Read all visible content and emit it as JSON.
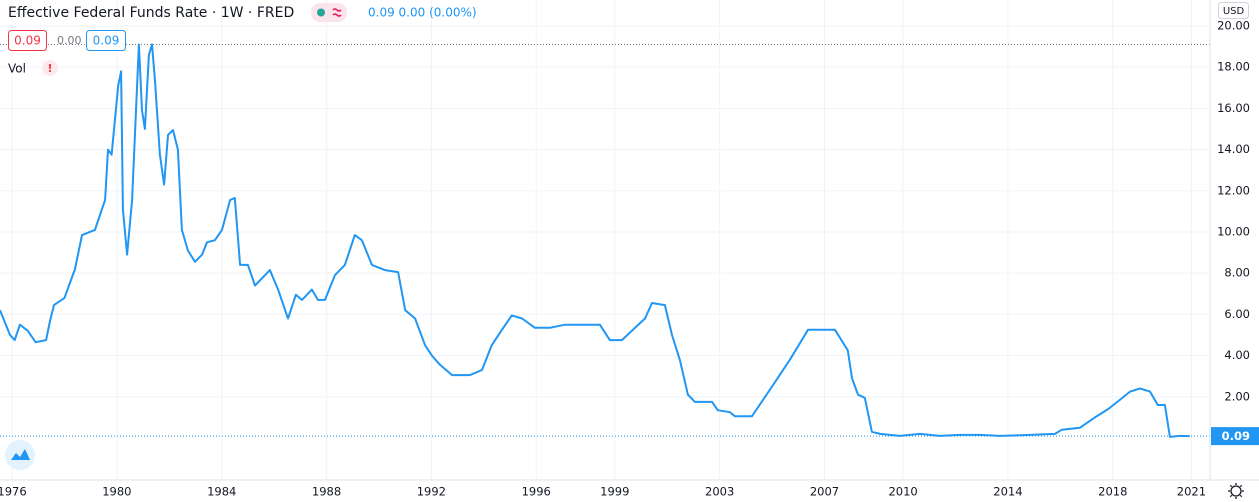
{
  "chart_data": {
    "type": "line",
    "title": "Effective Federal Funds Rate · 1W · FRED",
    "legend_values": "0.09 0.00 (0.00%)",
    "change": "0.00",
    "last_price": 0.09,
    "volume_label": "Vol",
    "volume_warning": "!",
    "currency": "USD",
    "color": "#2196f3",
    "grid": true,
    "xlim": [
      1975.54,
      2021.71
    ],
    "xticks": [
      1976,
      1980,
      1984,
      1988,
      1992,
      1996,
      1999,
      2003,
      2007,
      2010,
      2014,
      2018,
      2021
    ],
    "ylim": [
      -2.04,
      21.26
    ],
    "yticks": [
      {
        "value": 2,
        "label": "2.00"
      },
      {
        "value": 4,
        "label": "4.00"
      },
      {
        "value": 6,
        "label": "6.00"
      },
      {
        "value": 8,
        "label": "8.00"
      },
      {
        "value": 10,
        "label": "10.00"
      },
      {
        "value": 12,
        "label": "12.00"
      },
      {
        "value": 14,
        "label": "14.00"
      },
      {
        "value": 16,
        "label": "16.00"
      },
      {
        "value": 18,
        "label": "18.00"
      },
      {
        "value": 20,
        "label": "20.00"
      }
    ],
    "x": [
      1975.54,
      1975.92,
      1976.1,
      1976.3,
      1976.6,
      1976.9,
      1977.3,
      1977.45,
      1977.6,
      1978.0,
      1978.4,
      1978.67,
      1979.16,
      1979.55,
      1979.66,
      1979.8,
      1980.05,
      1980.16,
      1980.23,
      1980.39,
      1980.58,
      1980.73,
      1980.84,
      1980.96,
      1981.07,
      1981.22,
      1981.34,
      1981.45,
      1981.64,
      1981.8,
      1981.95,
      1982.14,
      1982.33,
      1982.48,
      1982.71,
      1982.98,
      1983.25,
      1983.44,
      1983.74,
      1984.01,
      1984.32,
      1984.5,
      1984.7,
      1985.0,
      1985.27,
      1985.65,
      1985.84,
      1986.15,
      1986.53,
      1986.83,
      1987.06,
      1987.44,
      1987.67,
      1987.94,
      1988.32,
      1988.7,
      1989.08,
      1989.35,
      1989.73,
      1990.23,
      1990.73,
      1991.0,
      1991.38,
      1991.76,
      1992.02,
      1992.33,
      1992.79,
      1993.47,
      1993.93,
      1994.3,
      1994.69,
      1995.07,
      1995.46,
      1995.95,
      1996.52,
      1997.1,
      1997.67,
      1998.43,
      1998.81,
      1999.27,
      1999.77,
      2000.15,
      2000.42,
      2000.91,
      2001.18,
      2001.48,
      2001.79,
      2002.06,
      2002.71,
      2002.93,
      2003.39,
      2003.58,
      2004.23,
      2004.92,
      2005.68,
      2006.37,
      2007.4,
      2007.89,
      2008.05,
      2008.28,
      2008.54,
      2008.81,
      2009.12,
      2009.88,
      2010.64,
      2011.4,
      2012.17,
      2012.93,
      2013.7,
      2014.84,
      2015.79,
      2016.06,
      2016.75,
      2017.32,
      2017.82,
      2018.27,
      2018.66,
      2019.04,
      2019.42,
      2019.72,
      2019.99,
      2020.18,
      2020.56,
      2020.94
    ],
    "series": [
      {
        "name": "Effective Federal Funds Rate",
        "color": "#2196f3",
        "values": [
          6.2,
          5.0,
          4.75,
          5.5,
          5.2,
          4.65,
          4.75,
          5.7,
          6.45,
          6.8,
          8.2,
          9.85,
          10.1,
          11.55,
          14.0,
          13.75,
          17.1,
          17.8,
          11.1,
          8.9,
          11.55,
          15.9,
          19.1,
          15.9,
          15.0,
          18.6,
          19.1,
          17.4,
          13.75,
          12.3,
          14.7,
          14.95,
          14.0,
          10.1,
          9.1,
          8.55,
          8.9,
          9.5,
          9.6,
          10.1,
          11.55,
          11.65,
          8.4,
          8.4,
          7.4,
          7.9,
          8.15,
          7.2,
          5.8,
          6.95,
          6.7,
          7.2,
          6.7,
          6.7,
          7.9,
          8.4,
          9.85,
          9.6,
          8.4,
          8.15,
          8.05,
          6.2,
          5.8,
          4.5,
          4.0,
          3.55,
          3.05,
          3.05,
          3.3,
          4.5,
          5.25,
          5.95,
          5.8,
          5.35,
          5.35,
          5.5,
          5.5,
          5.5,
          4.75,
          4.75,
          5.35,
          5.8,
          6.55,
          6.45,
          5.0,
          3.8,
          2.1,
          1.75,
          1.75,
          1.35,
          1.25,
          1.05,
          1.05,
          2.35,
          3.8,
          5.25,
          5.25,
          4.25,
          2.9,
          2.1,
          1.95,
          0.3,
          0.2,
          0.1,
          0.2,
          0.1,
          0.15,
          0.15,
          0.1,
          0.15,
          0.2,
          0.4,
          0.5,
          1.0,
          1.4,
          1.85,
          2.25,
          2.4,
          2.25,
          1.6,
          1.6,
          0.05,
          0.1,
          0.09
        ]
      }
    ]
  }
}
